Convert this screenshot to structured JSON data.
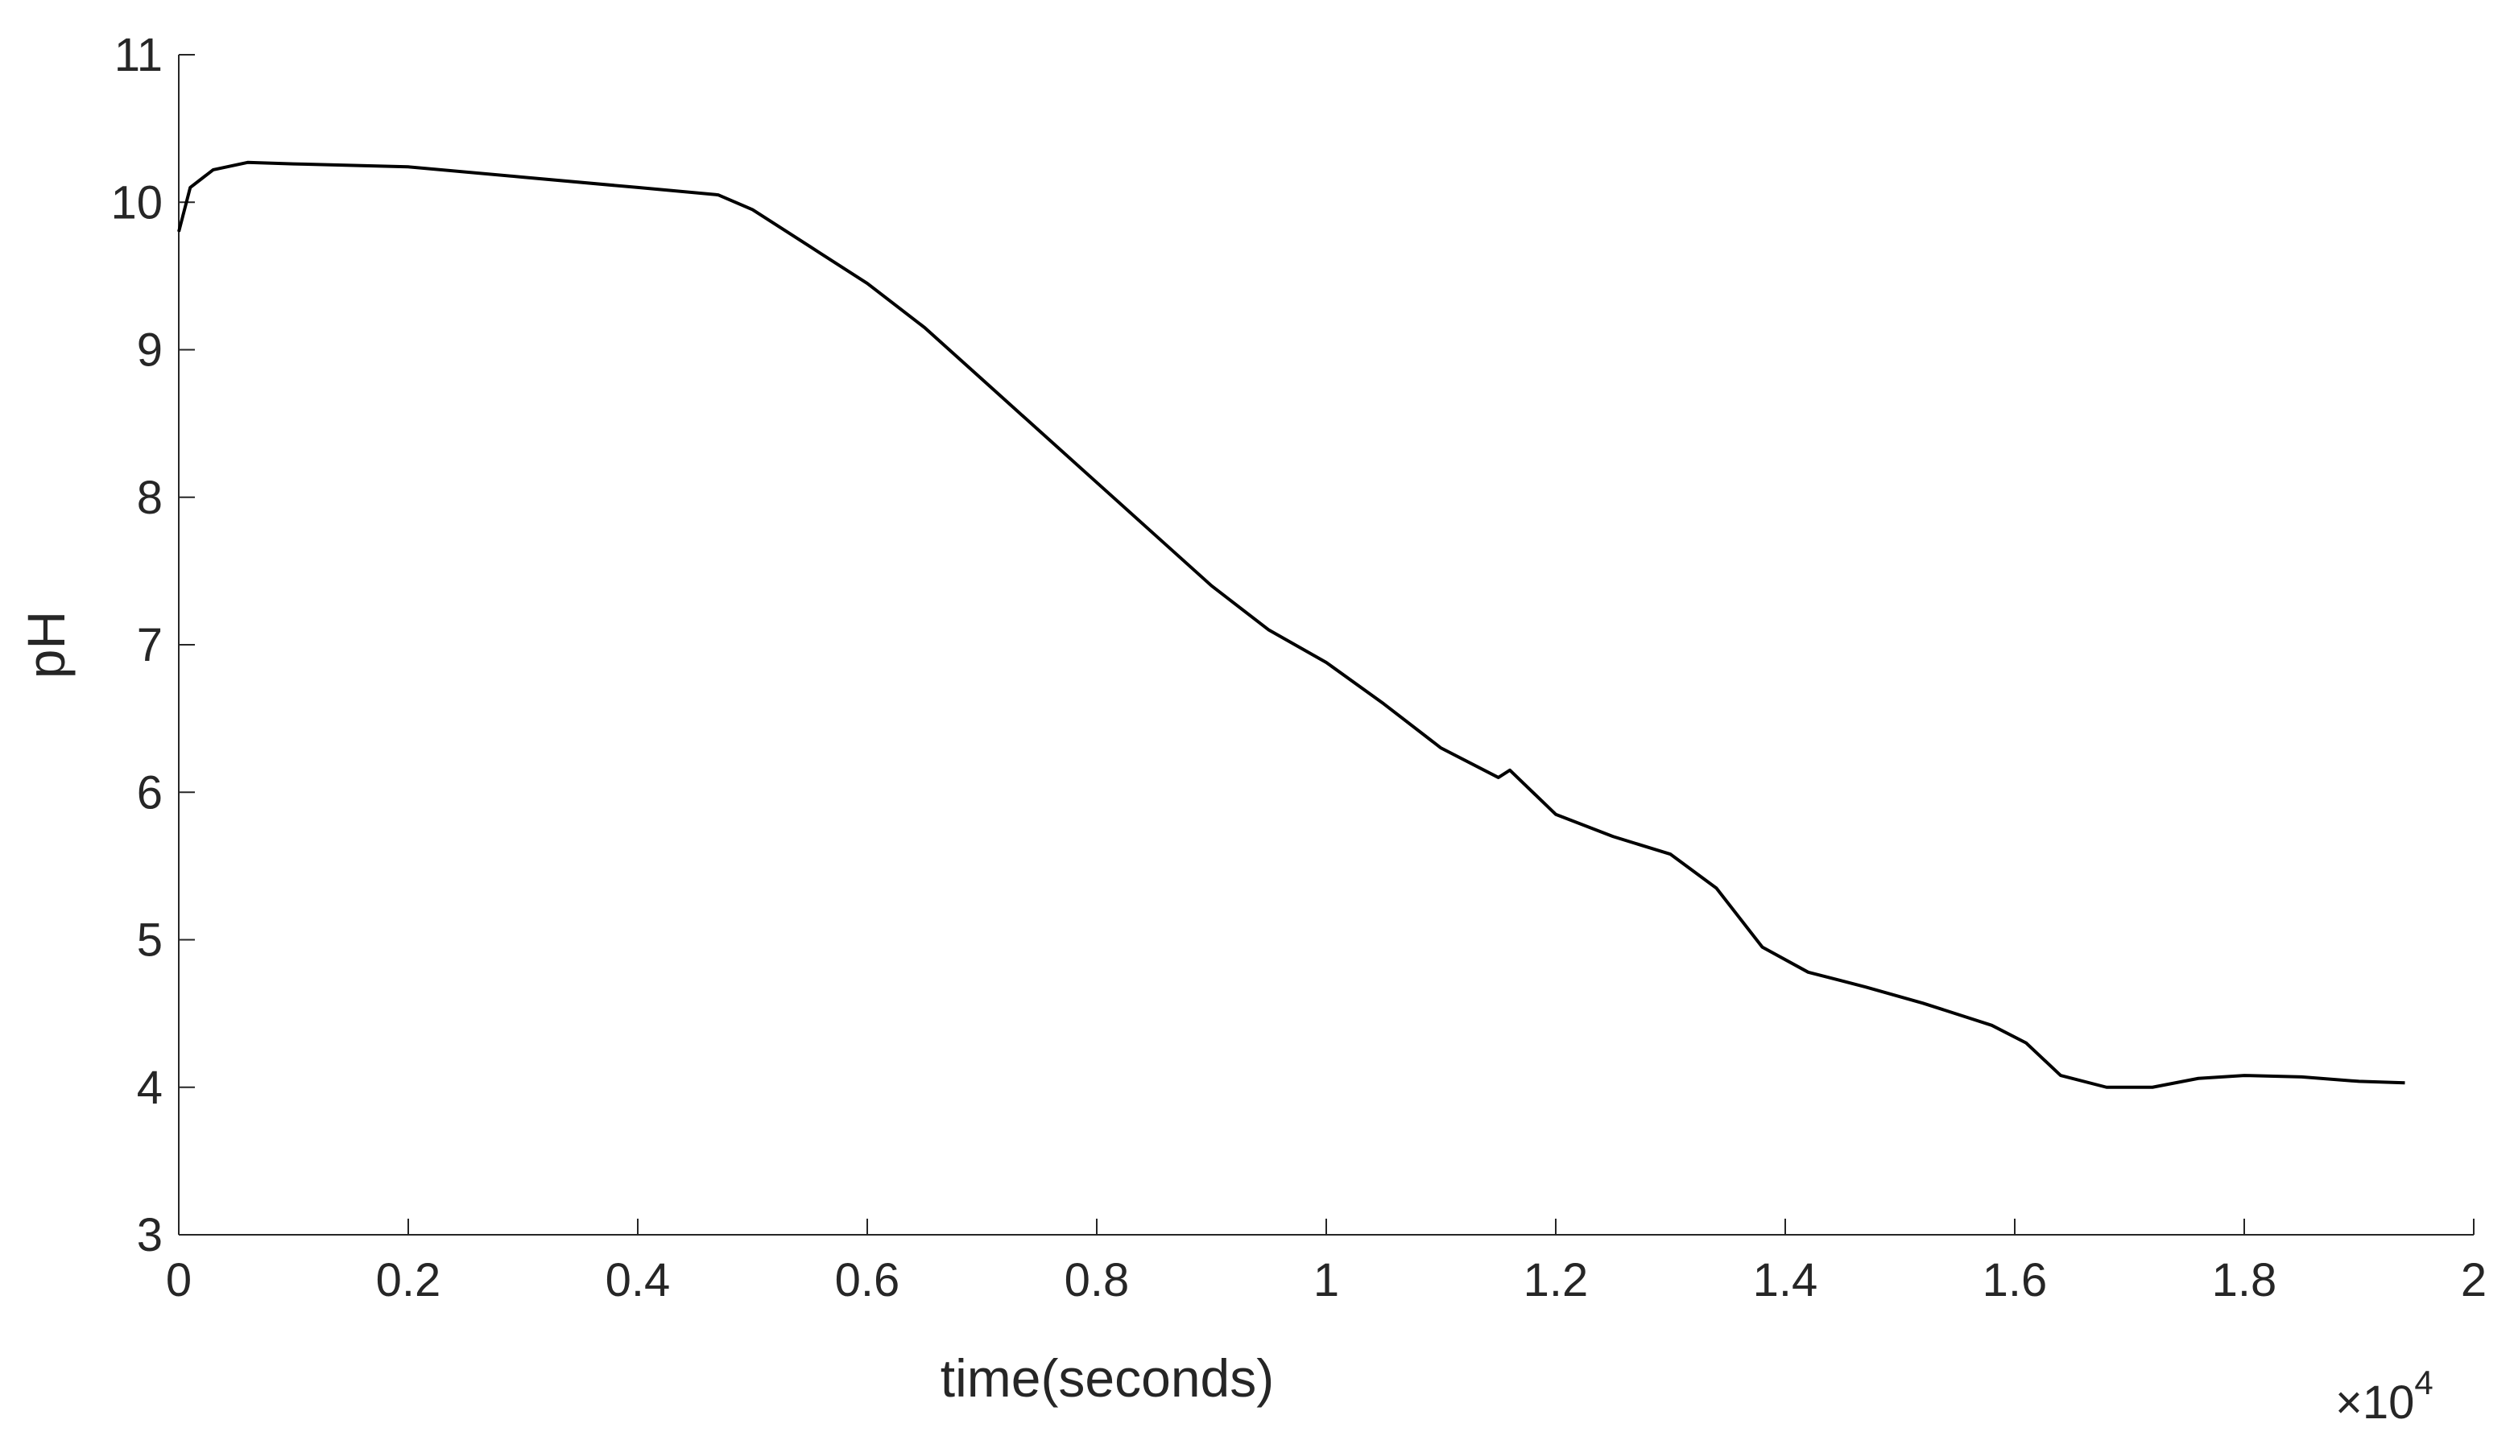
{
  "chart_data": {
    "type": "line",
    "xlabel": "time(seconds)",
    "ylabel": "pH",
    "x_multiplier": {
      "base": "×10",
      "exponent": "4"
    },
    "x": [
      0,
      100,
      300,
      600,
      1000,
      2000,
      3000,
      4000,
      4700,
      5000,
      5500,
      6000,
      6500,
      7000,
      7500,
      8000,
      8500,
      9000,
      9500,
      10000,
      10500,
      11000,
      11500,
      11600,
      12000,
      12500,
      13000,
      13400,
      13800,
      14200,
      14700,
      15200,
      15800,
      16100,
      16400,
      16800,
      17200,
      17600,
      18000,
      18500,
      19000,
      19400
    ],
    "series": [
      {
        "color": "#000000",
        "values": [
          9.8,
          10.1,
          10.22,
          10.27,
          10.26,
          10.24,
          10.17,
          10.1,
          10.05,
          9.95,
          9.7,
          9.45,
          9.15,
          8.8,
          8.45,
          8.1,
          7.75,
          7.4,
          7.1,
          6.88,
          6.6,
          6.3,
          6.1,
          6.15,
          5.85,
          5.7,
          5.58,
          5.35,
          4.95,
          4.78,
          4.68,
          4.57,
          4.42,
          4.3,
          4.08,
          4.0,
          4.0,
          4.06,
          4.08,
          4.07,
          4.04,
          4.03
        ]
      }
    ],
    "xlim": [
      0,
      20000
    ],
    "xticks": [
      0,
      {
        "value": 2000,
        "label": "0.2"
      },
      {
        "value": 4000,
        "label": "0.4"
      },
      {
        "value": 6000,
        "label": "0.6"
      },
      {
        "value": 8000,
        "label": "0.8"
      },
      {
        "value": 10000,
        "label": "1"
      },
      {
        "value": 12000,
        "label": "1.2"
      },
      {
        "value": 14000,
        "label": "1.4"
      },
      {
        "value": 16000,
        "label": "1.6"
      },
      {
        "value": 18000,
        "label": "1.8"
      },
      {
        "value": 20000,
        "label": "2"
      }
    ],
    "ylim": [
      3,
      11
    ],
    "yticks": [
      3,
      4,
      5,
      6,
      7,
      8,
      9,
      10,
      11
    ],
    "grid": false
  }
}
